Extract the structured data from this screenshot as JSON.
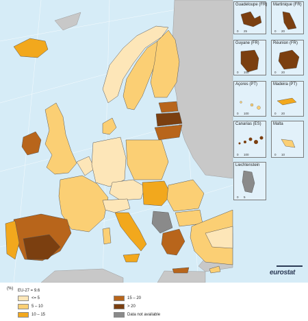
{
  "legend": {
    "unit": "(%)",
    "eu_average": "EU-27 = 9.6",
    "classes": [
      {
        "label": "<= 5",
        "color": "#fde6b8"
      },
      {
        "label": "5 – 10",
        "color": "#fbcf74"
      },
      {
        "label": "10 – 15",
        "color": "#f2a81d"
      },
      {
        "label": "15 – 20",
        "color": "#b8651b"
      },
      {
        "label": "> 20",
        "color": "#7b3f10"
      },
      {
        "label": "Data not available",
        "color": "#8a8a8a"
      }
    ]
  },
  "insets": [
    {
      "id": "guadeloupe",
      "label": "Guadeloupe (FR)",
      "scale": [
        "0",
        "25"
      ]
    },
    {
      "id": "martinique",
      "label": "Martinique (FR)",
      "scale": [
        "0",
        "20"
      ]
    },
    {
      "id": "guyane",
      "label": "Guyane (FR)",
      "scale": [
        "0",
        "100"
      ]
    },
    {
      "id": "reunion",
      "label": "Réunion (FR)",
      "scale": [
        "0",
        "20"
      ]
    },
    {
      "id": "acores",
      "label": "Açores (PT)",
      "scale": [
        "0",
        "100"
      ]
    },
    {
      "id": "madeira",
      "label": "Madeira (PT)",
      "scale": [
        "0",
        "20"
      ]
    },
    {
      "id": "canarias",
      "label": "Canarias (ES)",
      "scale": [
        "0",
        "100"
      ]
    },
    {
      "id": "malta",
      "label": "Malta",
      "scale": [
        "0",
        "10"
      ]
    },
    {
      "id": "liechtenstein",
      "label": "Liechtenstein",
      "scale": [
        "0",
        "5"
      ]
    }
  ],
  "logo": "eurostat",
  "colors": {
    "sea": "#d6ecf7",
    "non_eu_land": "#c8c8c8",
    "border": "#555555"
  }
}
